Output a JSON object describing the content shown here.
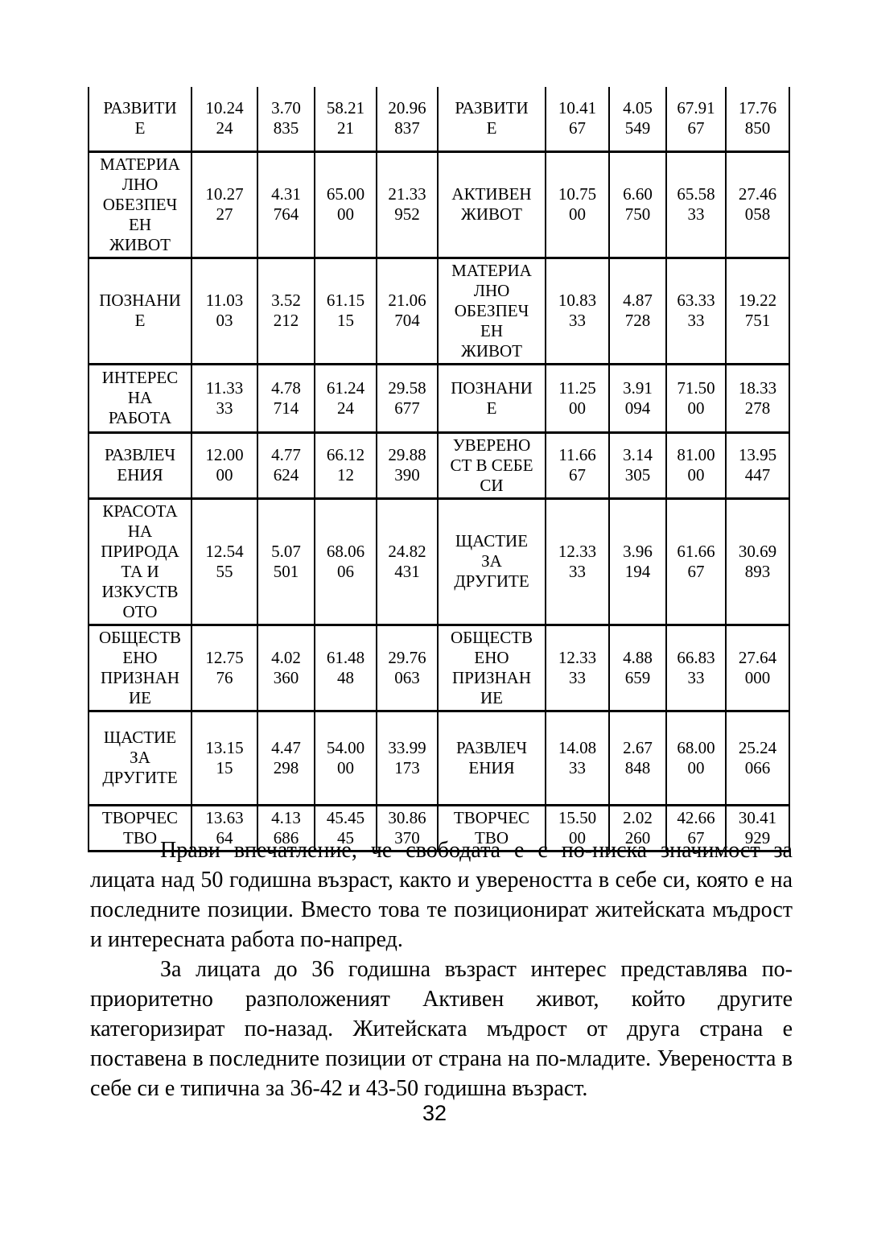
{
  "table": {
    "rows": [
      {
        "left": {
          "label": "РАЗВИТИ\nЕ",
          "values": [
            "10.24\n24",
            "3.70\n835",
            "58.21\n21",
            "20.96\n837"
          ]
        },
        "right": {
          "label": "РАЗВИТИ\nЕ",
          "values": [
            "10.41\n67",
            "4.05\n549",
            "67.91\n67",
            "17.76\n850"
          ]
        }
      },
      {
        "left": {
          "label": "МАТЕРИА\nЛНО\nОБЕЗПЕЧ\nЕН\nЖИВОТ",
          "values": [
            "10.27\n27",
            "4.31\n764",
            "65.00\n00",
            "21.33\n952"
          ]
        },
        "right": {
          "label": "АКТИВЕН\nЖИВОТ",
          "values": [
            "10.75\n00",
            "6.60\n750",
            "65.58\n33",
            "27.46\n058"
          ]
        }
      },
      {
        "left": {
          "label": "ПОЗНАНИ\nЕ",
          "values": [
            "11.03\n03",
            "3.52\n212",
            "61.15\n15",
            "21.06\n704"
          ]
        },
        "right": {
          "label": "МАТЕРИА\nЛНО\nОБЕЗПЕЧ\nЕН\nЖИВОТ",
          "values": [
            "10.83\n33",
            "4.87\n728",
            "63.33\n33",
            "19.22\n751"
          ]
        }
      },
      {
        "left": {
          "label": "ИНТЕРЕС\nНА\nРАБОТА",
          "values": [
            "11.33\n33",
            "4.78\n714",
            "61.24\n24",
            "29.58\n677"
          ]
        },
        "right": {
          "label": "ПОЗНАНИ\nЕ",
          "values": [
            "11.25\n00",
            "3.91\n094",
            "71.50\n00",
            "18.33\n278"
          ]
        }
      },
      {
        "left": {
          "label": "РАЗВЛЕЧ\nЕНИЯ",
          "values": [
            "12.00\n00",
            "4.77\n624",
            "66.12\n12",
            "29.88\n390"
          ]
        },
        "right": {
          "label": "УВЕРЕНО\nСТ В СЕБЕ\nСИ",
          "values": [
            "11.66\n67",
            "3.14\n305",
            "81.00\n00",
            "13.95\n447"
          ]
        }
      },
      {
        "left": {
          "label": "КРАСОТА\nНА\nПРИРОДА\nТА И\nИЗКУСТВ\nОТО",
          "values": [
            "12.54\n55",
            "5.07\n501",
            "68.06\n06",
            "24.82\n431"
          ]
        },
        "right": {
          "label": "ЩАСТИЕ\nЗА\nДРУГИТЕ",
          "values": [
            "12.33\n33",
            "3.96\n194",
            "61.66\n67",
            "30.69\n893"
          ]
        }
      },
      {
        "left": {
          "label": "ОБЩЕСТВ\nЕНО\nПРИЗНАН\nИЕ",
          "values": [
            "12.75\n76",
            "4.02\n360",
            "61.48\n48",
            "29.76\n063"
          ]
        },
        "right": {
          "label": "ОБЩЕСТВ\nЕНО\nПРИЗНАН\nИЕ",
          "values": [
            "12.33\n33",
            "4.88\n659",
            "66.83\n33",
            "27.64\n000"
          ]
        }
      },
      {
        "left": {
          "label": "ЩАСТИЕ\nЗА\nДРУГИТЕ",
          "values": [
            "13.15\n15",
            "4.47\n298",
            "54.00\n00",
            "33.99\n173"
          ]
        },
        "right": {
          "label": "РАЗВЛЕЧ\nЕНИЯ",
          "values": [
            "14.08\n33",
            "2.67\n848",
            "68.00\n00",
            "25.24\n066"
          ]
        }
      },
      {
        "left": {
          "label": "ТВОРЧЕС\nТВО",
          "values": [
            "13.63\n64",
            "4.13\n686",
            "45.45\n45",
            "30.86\n370"
          ]
        },
        "right": {
          "label": "ТВОРЧЕС\nТВО",
          "values": [
            "15.50\n00",
            "2.02\n260",
            "42.66\n67",
            "30.41\n929"
          ]
        }
      }
    ]
  },
  "paragraphs": [
    "Прави впечатление, че свободата е с по-ниска значимост за лицата над 50 годишна възраст, както и увереността в себе си, която е на последните позиции. Вместо това те позиционират житейската мъдрост и интересната работа по-напред.",
    "За лицата до 36 годишна възраст интерес представлява по-приоритетно разположеният Активен живот, който другите категоризират по-назад. Житейската мъдрост от друга страна е поставена в последните позиции от страна на по-младите. Увереността в себе си е типична за 36-42 и 43-50 годишна възраст."
  ],
  "page": {
    "number": "32"
  }
}
